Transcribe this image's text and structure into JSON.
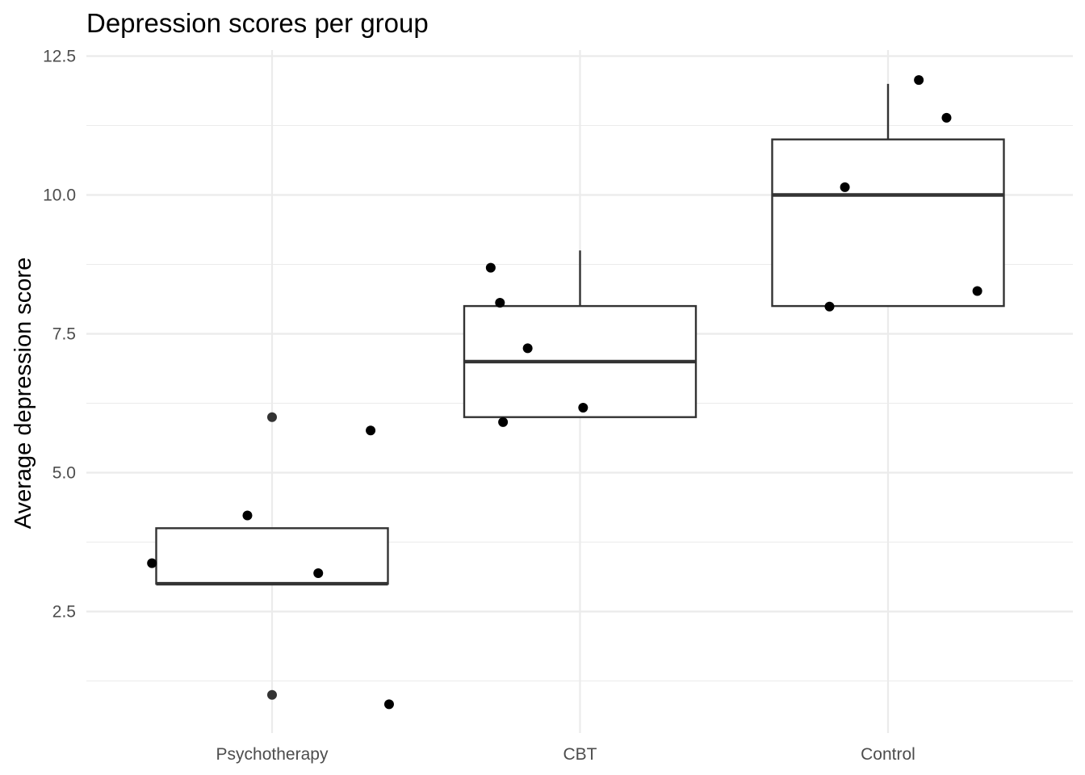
{
  "chart_data": {
    "type": "box",
    "title": "Depression scores per group",
    "xlabel": "",
    "ylabel": "Average depression score",
    "ylim": [
      0.5,
      12.75
    ],
    "yticks": [
      2.5,
      5.0,
      7.5,
      10.0,
      12.5
    ],
    "ytick_labels": [
      "2.5",
      "5.0",
      "7.5",
      "10.0",
      "12.5"
    ],
    "yminor": [
      1.25,
      3.75,
      6.25,
      8.75,
      11.25
    ],
    "categories": [
      "Psychotherapy",
      "CBT",
      "Control"
    ],
    "grid": true,
    "boxes": [
      {
        "category": "Psychotherapy",
        "q1": 3.0,
        "median": 3.0,
        "q3": 4.0,
        "whisker_low": 3.0,
        "whisker_high": 4.0,
        "outliers": [
          6.0,
          1.0
        ]
      },
      {
        "category": "CBT",
        "q1": 6.0,
        "median": 7.0,
        "q3": 8.0,
        "whisker_low": 6.0,
        "whisker_high": 9.0,
        "outliers": []
      },
      {
        "category": "Control",
        "q1": 8.0,
        "median": 10.0,
        "q3": 11.0,
        "whisker_low": 8.0,
        "whisker_high": 12.0,
        "outliers": []
      }
    ],
    "points": [
      {
        "category": "Psychotherapy",
        "jitter": -0.39,
        "y": 3.37
      },
      {
        "category": "Psychotherapy",
        "jitter": -0.08,
        "y": 4.23
      },
      {
        "category": "Psychotherapy",
        "jitter": 0.15,
        "y": 3.19
      },
      {
        "category": "Psychotherapy",
        "jitter": 0.32,
        "y": 5.76
      },
      {
        "category": "Psychotherapy",
        "jitter": 0.38,
        "y": 0.83
      },
      {
        "category": "CBT",
        "jitter": -0.29,
        "y": 8.69
      },
      {
        "category": "CBT",
        "jitter": -0.26,
        "y": 8.06
      },
      {
        "category": "CBT",
        "jitter": -0.17,
        "y": 7.24
      },
      {
        "category": "CBT",
        "jitter": 0.01,
        "y": 6.17
      },
      {
        "category": "CBT",
        "jitter": -0.25,
        "y": 5.91
      },
      {
        "category": "Control",
        "jitter": -0.14,
        "y": 10.14
      },
      {
        "category": "Control",
        "jitter": 0.1,
        "y": 12.07
      },
      {
        "category": "Control",
        "jitter": 0.19,
        "y": 11.39
      },
      {
        "category": "Control",
        "jitter": 0.29,
        "y": 8.27
      },
      {
        "category": "Control",
        "jitter": -0.19,
        "y": 7.99
      }
    ]
  }
}
